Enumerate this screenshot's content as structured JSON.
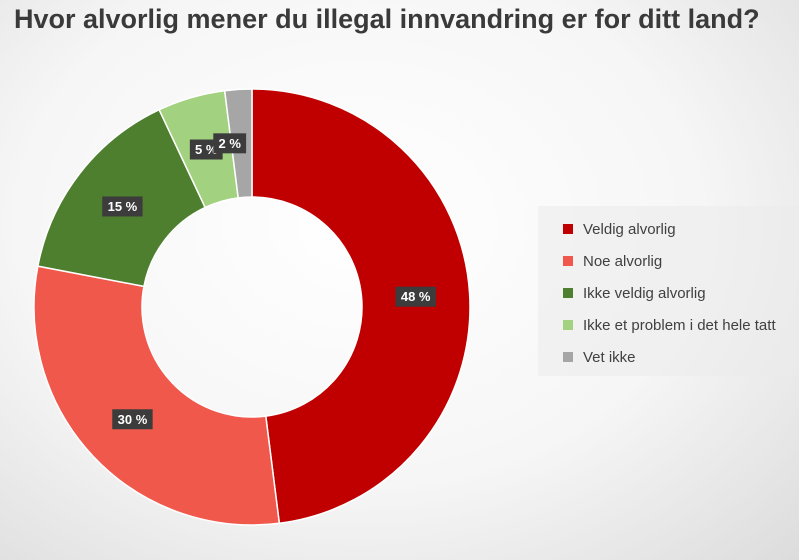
{
  "chart_data": {
    "type": "pie",
    "style": "donut",
    "title": "Hvor alvorlig mener du illegal innvandring er for ditt land?",
    "categories": [
      "Veldig alvorlig",
      "Noe alvorlig",
      "Ikke veldig alvorlig",
      "Ikke et problem i det hele tatt",
      "Vet ikke"
    ],
    "values": [
      48,
      30,
      15,
      5,
      2
    ],
    "labels": [
      "48 %",
      "30 %",
      "15 %",
      "5 %",
      "2 %"
    ],
    "colors": [
      "#c00000",
      "#f0584c",
      "#4e7f2e",
      "#a2d17f",
      "#a6a6a6"
    ],
    "legend": "right"
  }
}
